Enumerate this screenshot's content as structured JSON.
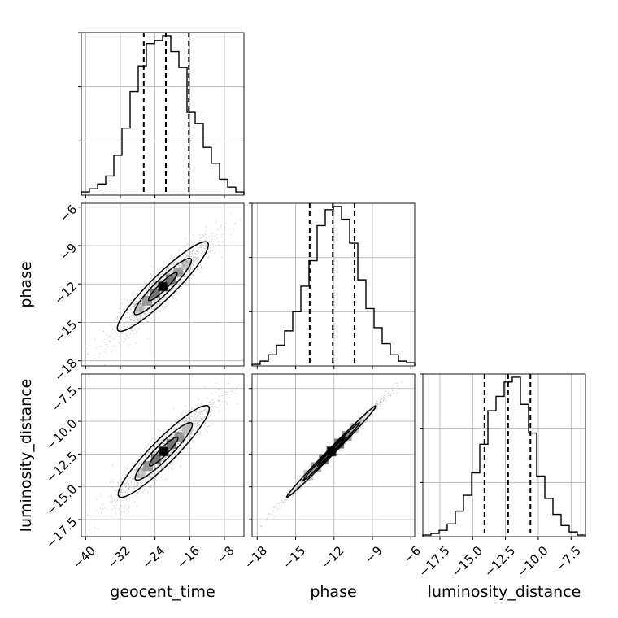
{
  "chart_data": {
    "type": "corner",
    "parameters": [
      "geocent_time",
      "phase",
      "luminosity_distance"
    ],
    "axis_labels": {
      "geocent_time": "geocent_time",
      "phase": "phase",
      "luminosity_distance": "luminosity_distance"
    },
    "ranges": {
      "geocent_time": [
        -41,
        -3.5
      ],
      "phase": [
        -18.4,
        -5.7
      ],
      "luminosity_distance": [
        -18.8,
        -6.4
      ]
    },
    "ticks": {
      "geocent_time": {
        "values": [
          -40,
          -32,
          -24,
          -16,
          -8
        ],
        "labels": [
          "−40",
          "−32",
          "−24",
          "−16",
          "−8"
        ]
      },
      "phase": {
        "values": [
          -18,
          -15,
          -12,
          -9,
          -6
        ],
        "labels": [
          "−18",
          "−15",
          "−12",
          "−9",
          "−6"
        ]
      },
      "luminosity_distance": {
        "values": [
          -17.5,
          -15.0,
          -12.5,
          -10.0,
          -7.5
        ],
        "labels": [
          "−17.5",
          "−15.0",
          "−12.5",
          "−10.0",
          "−7.5"
        ]
      }
    },
    "grid": true,
    "quantile_lines": {
      "geocent_time": [
        -26.6,
        -21.5,
        -16.2
      ],
      "phase": [
        -13.9,
        -12.1,
        -10.4
      ],
      "luminosity_distance": [
        -14.1,
        -12.3,
        -10.6
      ]
    },
    "histograms": {
      "geocent_time": {
        "edges": [
          -41.0,
          -39.125,
          -37.25,
          -35.375,
          -33.5,
          -31.625,
          -29.75,
          -27.875,
          -26.0,
          -24.125,
          -22.25,
          -20.375,
          -18.5,
          -16.625,
          -14.75,
          -12.875,
          -11.0,
          -9.125,
          -7.25,
          -5.375,
          -3.5
        ],
        "counts": [
          2,
          4,
          7,
          12,
          25,
          42,
          65,
          81,
          95,
          97,
          100,
          90,
          80,
          52,
          45,
          30,
          20,
          10,
          5,
          2
        ]
      },
      "phase": {
        "edges": [
          -18.4,
          -17.765,
          -17.13,
          -16.495,
          -15.86,
          -15.225,
          -14.59,
          -13.955,
          -13.32,
          -12.685,
          -12.05,
          -11.415,
          -10.78,
          -10.145,
          -9.51,
          -8.875,
          -8.24,
          -7.605,
          -6.97,
          -6.335,
          -5.7
        ],
        "counts": [
          1,
          3,
          7,
          13,
          22,
          34,
          50,
          66,
          88,
          98,
          100,
          92,
          77,
          54,
          36,
          24,
          14,
          7,
          3,
          2
        ]
      },
      "luminosity_distance": {
        "edges": [
          -18.8,
          -18.18,
          -17.56,
          -16.94,
          -16.32,
          -15.7,
          -15.08,
          -14.46,
          -13.84,
          -13.22,
          -12.6,
          -11.98,
          -11.36,
          -10.74,
          -10.12,
          -9.5,
          -8.88,
          -8.26,
          -7.64,
          -7.02,
          -6.4
        ],
        "counts": [
          1,
          2,
          4,
          8,
          16,
          26,
          40,
          58,
          79,
          88,
          97,
          100,
          83,
          65,
          38,
          24,
          14,
          7,
          3,
          1
        ]
      }
    },
    "scatter_cells": [
      {
        "x": "geocent_time",
        "y": "phase",
        "mean": [
          -22.2,
          -12.2
        ],
        "sd": [
          6.0,
          2.0
        ],
        "corr": 0.93
      },
      {
        "x": "geocent_time",
        "y": "luminosity_distance",
        "mean": [
          -22.0,
          -12.3
        ],
        "sd": [
          6.0,
          2.0
        ],
        "corr": 0.93
      },
      {
        "x": "phase",
        "y": "luminosity_distance",
        "mean": [
          -12.2,
          -12.3
        ],
        "sd": [
          2.0,
          2.0
        ],
        "corr": 0.995
      }
    ]
  }
}
